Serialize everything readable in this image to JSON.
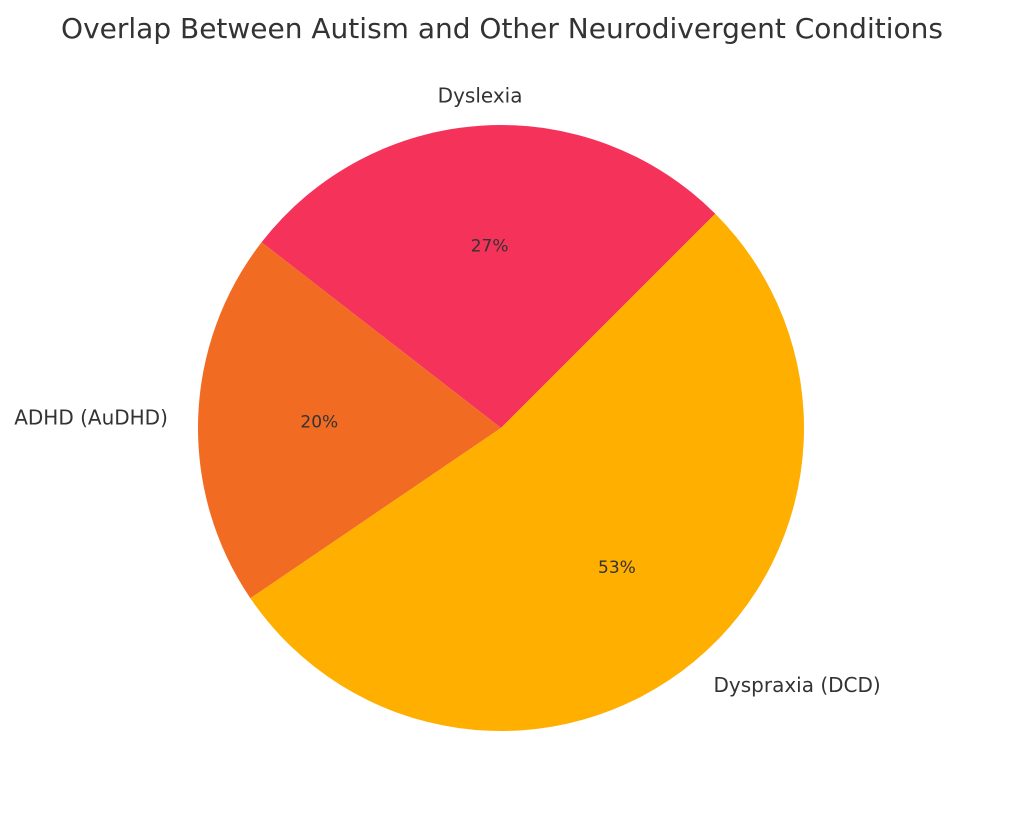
{
  "chart_data": {
    "type": "pie",
    "title": "Overlap Between Autism and Other Neurodivergent Conditions",
    "categories": [
      "Dyslexia",
      "ADHD (AuDHD)",
      "Dyspraxia (DCD)"
    ],
    "values": [
      27,
      20,
      53
    ],
    "percent_labels": [
      "27%",
      "20%",
      "53%"
    ],
    "colors": [
      "#F5325A",
      "#F26B22",
      "#FFAF00"
    ],
    "start_angle_deg": 45,
    "direction": "counterclockwise"
  }
}
